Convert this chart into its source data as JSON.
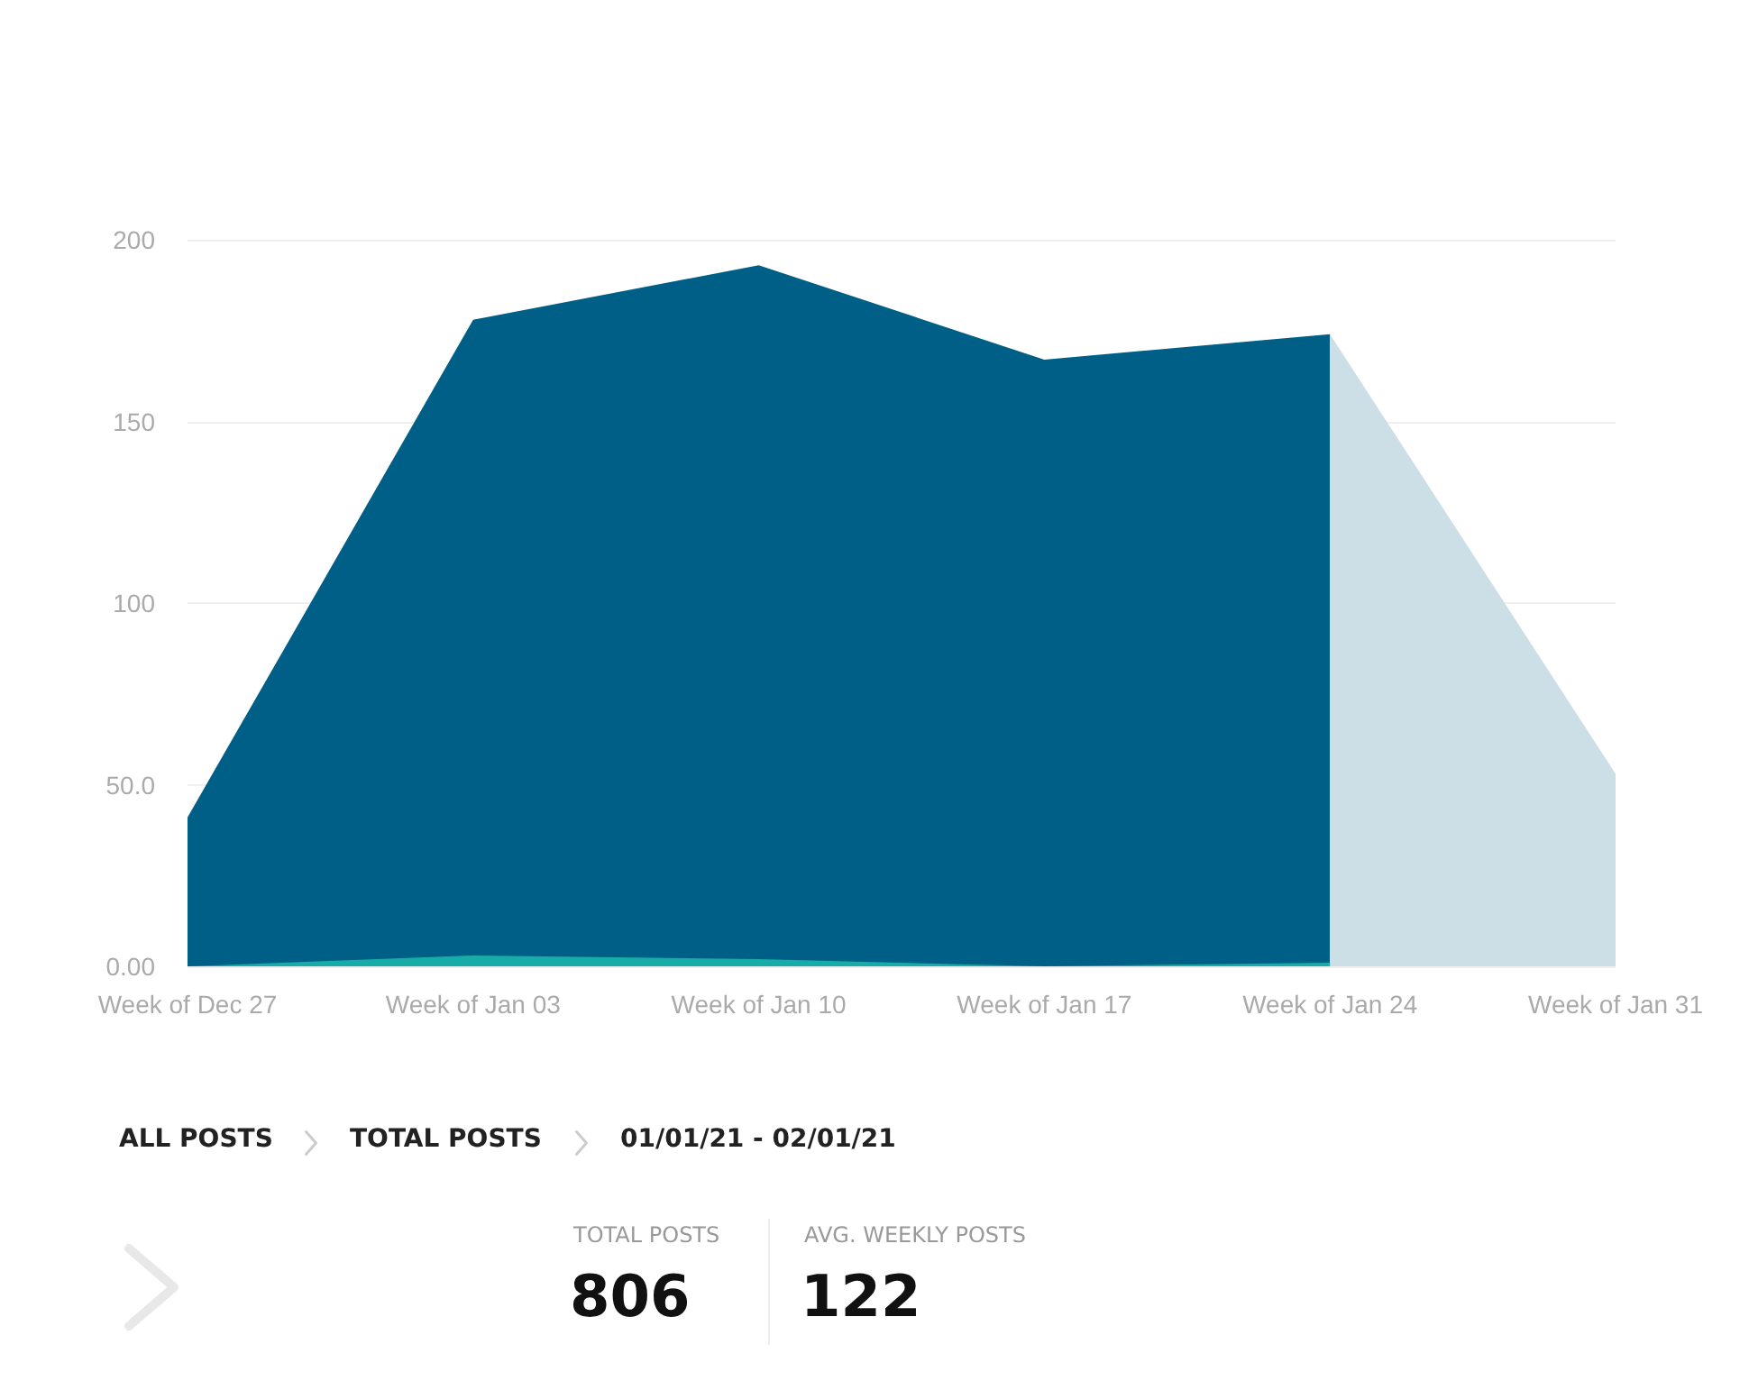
{
  "chart_data": {
    "type": "area",
    "categories": [
      "Week of Dec 27",
      "Week of Jan 03",
      "Week of Jan 10",
      "Week of Jan 17",
      "Week of Jan 24",
      "Week of Jan 31"
    ],
    "series": [
      {
        "color": "#005f86",
        "values": [
          41,
          178,
          193,
          167,
          174,
          null
        ]
      },
      {
        "color": "#cddfe6",
        "values": [
          null,
          null,
          null,
          null,
          174,
          53
        ]
      },
      {
        "color": "#17aca8",
        "values": [
          0,
          3,
          2,
          0,
          1,
          null
        ]
      }
    ],
    "ylim": [
      0,
      200
    ],
    "yticks": [
      {
        "value": 0,
        "label": "0.00"
      },
      {
        "value": 50,
        "label": "50.0"
      },
      100,
      150,
      200
    ],
    "grid": "y",
    "annotations": [
      "ALL POSTS",
      "TOTAL POSTS",
      "01/01/21 - 02/01/21",
      "TOTAL POSTS",
      "806",
      "AVG. WEEKLY POSTS",
      "122"
    ]
  }
}
